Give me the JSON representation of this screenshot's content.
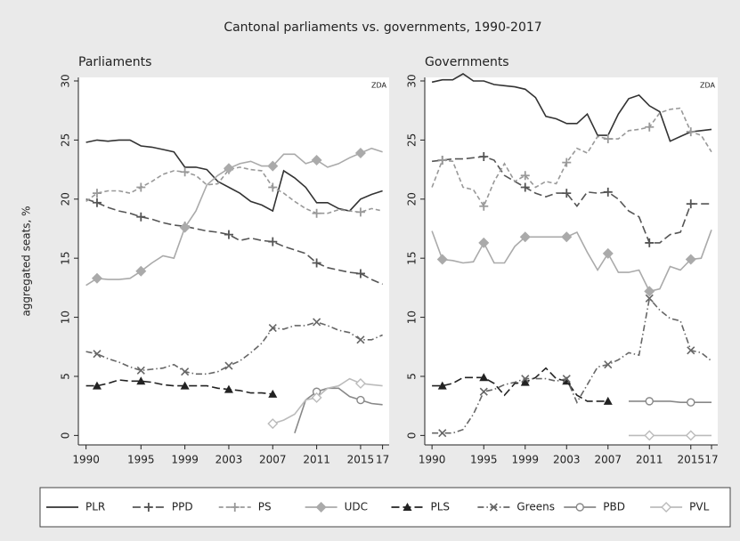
{
  "title": "Cantonal parliaments vs. governments, 1990-2017",
  "chart_data": [
    {
      "type": "line",
      "title": "Parliaments",
      "ylabel": "aggregated seats, %",
      "annotation": "ZDA",
      "x": [
        1990,
        1991,
        1992,
        1993,
        1994,
        1995,
        1996,
        1997,
        1998,
        1999,
        2000,
        2001,
        2002,
        2003,
        2004,
        2005,
        2006,
        2007,
        2008,
        2009,
        2010,
        2011,
        2012,
        2013,
        2014,
        2015,
        2016,
        2017
      ],
      "xlim": [
        1989.3,
        2017.6
      ],
      "xticks": [
        1990,
        1995,
        1999,
        2003,
        2007,
        2011,
        2015,
        {
          "value": 2017,
          "label": "17"
        }
      ],
      "ylim": [
        -0.8,
        30.3
      ],
      "yticks": [
        0,
        5,
        10,
        15,
        20,
        25,
        30
      ],
      "series": [
        {
          "name": "PLR",
          "color": "#333333",
          "dash": "solid",
          "marker": "none",
          "values": [
            24.8,
            25,
            24.9,
            25,
            25,
            24.5,
            24.4,
            24.2,
            24,
            22.7,
            22.7,
            22.5,
            21.5,
            21,
            20.5,
            19.8,
            19.5,
            19,
            22.4,
            21.8,
            21,
            19.7,
            19.7,
            19.2,
            19,
            20,
            20.4,
            20.7
          ]
        },
        {
          "name": "PPD",
          "color": "#555555",
          "dash": "longdash",
          "marker": "plus",
          "values": [
            20,
            19.7,
            19.3,
            19,
            18.8,
            18.5,
            18.3,
            18,
            17.8,
            17.7,
            17.5,
            17.3,
            17.2,
            17,
            16.5,
            16.7,
            16.5,
            16.4,
            16,
            15.7,
            15.4,
            14.6,
            14.2,
            14,
            13.8,
            13.7,
            13.2,
            12.8
          ]
        },
        {
          "name": "PS",
          "color": "#999999",
          "dash": "dash",
          "marker": "plus",
          "values": [
            19.8,
            20.5,
            20.7,
            20.7,
            20.5,
            21,
            21.5,
            22.1,
            22.4,
            22.3,
            22,
            21.2,
            21.3,
            22.5,
            22.7,
            22.5,
            22.4,
            21,
            20.5,
            19.8,
            19.2,
            18.8,
            18.8,
            19.1,
            19,
            18.9,
            19.2,
            19
          ]
        },
        {
          "name": "UDC",
          "color": "#aaaaaa",
          "dash": "solid",
          "marker": "diamond",
          "values": [
            12.7,
            13.3,
            13.2,
            13.2,
            13.3,
            13.9,
            14.6,
            15.2,
            15,
            17.6,
            19,
            21.2,
            22,
            22.6,
            23,
            23.2,
            22.8,
            22.8,
            23.8,
            23.8,
            23,
            23.3,
            22.7,
            23,
            23.5,
            23.9,
            24.3,
            24
          ]
        },
        {
          "name": "PLS",
          "color": "#222222",
          "dash": "longdash",
          "marker": "triangle",
          "values": [
            4.2,
            4.2,
            4.4,
            4.7,
            4.6,
            4.6,
            4.5,
            4.3,
            4.2,
            4.2,
            4.2,
            4.2,
            4,
            3.9,
            3.8,
            3.6,
            3.6,
            3.5,
            null,
            null,
            null,
            null,
            null,
            null,
            null,
            null,
            null,
            null
          ]
        },
        {
          "name": "Greens",
          "color": "#666666",
          "dash": "dashdot",
          "marker": "x",
          "values": [
            7.1,
            6.9,
            6.5,
            6.2,
            5.8,
            5.5,
            5.6,
            5.7,
            6,
            5.4,
            5.2,
            5.2,
            5.4,
            5.9,
            6.3,
            7,
            7.8,
            9.1,
            9,
            9.3,
            9.3,
            9.6,
            9.3,
            8.9,
            8.7,
            8.1,
            8.1,
            8.5
          ]
        },
        {
          "name": "PBD",
          "color": "#888888",
          "dash": "solid",
          "marker": "circle",
          "values": [
            null,
            null,
            null,
            null,
            null,
            null,
            null,
            null,
            null,
            null,
            null,
            null,
            null,
            null,
            null,
            null,
            null,
            null,
            null,
            0.2,
            3,
            3.7,
            4,
            4,
            3.3,
            3,
            2.7,
            2.6
          ]
        },
        {
          "name": "PVL",
          "color": "#bbbbbb",
          "dash": "solid",
          "marker": "diamond-open",
          "values": [
            null,
            null,
            null,
            null,
            null,
            null,
            null,
            null,
            null,
            null,
            null,
            null,
            null,
            null,
            null,
            null,
            null,
            1,
            1.3,
            1.8,
            3,
            3.2,
            4,
            4.2,
            4.8,
            4.4,
            4.3,
            4.2
          ]
        }
      ]
    },
    {
      "type": "line",
      "title": "Governments",
      "annotation": "ZDA",
      "x": [
        1990,
        1991,
        1992,
        1993,
        1994,
        1995,
        1996,
        1997,
        1998,
        1999,
        2000,
        2001,
        2002,
        2003,
        2004,
        2005,
        2006,
        2007,
        2008,
        2009,
        2010,
        2011,
        2012,
        2013,
        2014,
        2015,
        2016,
        2017
      ],
      "xlim": [
        1989.3,
        2017.6
      ],
      "xticks": [
        1990,
        1995,
        1999,
        2003,
        2007,
        2011,
        2015,
        {
          "value": 2017,
          "label": "17"
        }
      ],
      "ylim": [
        -0.8,
        30.3
      ],
      "yticks": [
        0,
        5,
        10,
        15,
        20,
        25,
        30
      ],
      "series": [
        {
          "name": "PLR",
          "color": "#333333",
          "dash": "solid",
          "marker": "none",
          "values": [
            29.9,
            30.1,
            30.1,
            30.6,
            30,
            30,
            29.7,
            29.6,
            29.5,
            29.3,
            28.6,
            27,
            26.8,
            26.4,
            26.4,
            27.2,
            25.4,
            25.4,
            27.2,
            28.5,
            28.8,
            27.9,
            27.4,
            24.9,
            25.3,
            25.7,
            25.8,
            25.9
          ]
        },
        {
          "name": "PPD",
          "color": "#555555",
          "dash": "longdash",
          "marker": "plus",
          "values": [
            23.2,
            23.3,
            23.4,
            23.4,
            23.5,
            23.6,
            23.3,
            22,
            21.5,
            21,
            20.5,
            20.2,
            20.5,
            20.5,
            19.4,
            20.6,
            20.5,
            20.6,
            20,
            19,
            18.5,
            16.3,
            16.3,
            17,
            17.2,
            19.6,
            19.6,
            19.6
          ]
        },
        {
          "name": "PS",
          "color": "#999999",
          "dash": "dash",
          "marker": "plus",
          "values": [
            21,
            23.3,
            23.2,
            21,
            20.8,
            19.4,
            21.5,
            23,
            21.5,
            22,
            21,
            21.5,
            21.3,
            23.1,
            24.3,
            23.9,
            25.3,
            25.1,
            25.1,
            25.8,
            25.9,
            26.1,
            27.3,
            27.6,
            27.7,
            25.7,
            25.4,
            24
          ]
        },
        {
          "name": "UDC",
          "color": "#aaaaaa",
          "dash": "solid",
          "marker": "diamond",
          "values": [
            17.3,
            14.9,
            14.8,
            14.6,
            14.7,
            16.3,
            14.6,
            14.6,
            16,
            16.8,
            16.8,
            16.8,
            16.8,
            16.8,
            17.2,
            15.5,
            14,
            15.4,
            13.8,
            13.8,
            14,
            12.2,
            12.4,
            14.3,
            14,
            14.9,
            15,
            17.4
          ]
        },
        {
          "name": "PLS",
          "color": "#222222",
          "dash": "longdash",
          "marker": "triangle",
          "values": [
            4.2,
            4.2,
            4.4,
            4.9,
            4.9,
            4.9,
            4.4,
            3.4,
            4.4,
            4.5,
            4.9,
            5.7,
            4.8,
            4.6,
            3.4,
            2.9,
            2.9,
            2.9,
            null,
            null,
            null,
            null,
            null,
            null,
            null,
            null,
            null,
            null
          ]
        },
        {
          "name": "Greens",
          "color": "#666666",
          "dash": "dashdot",
          "marker": "x",
          "values": [
            0.2,
            0.2,
            0.2,
            0.5,
            1.8,
            3.7,
            3.9,
            4.3,
            4.5,
            4.8,
            4.8,
            4.8,
            4.6,
            4.8,
            2.8,
            4.3,
            5.8,
            6,
            6.4,
            7,
            6.8,
            11.6,
            10.6,
            9.9,
            9.7,
            7.2,
            7,
            6.3
          ]
        },
        {
          "name": "PBD",
          "color": "#888888",
          "dash": "solid",
          "marker": "circle",
          "values": [
            null,
            null,
            null,
            null,
            null,
            null,
            null,
            null,
            null,
            null,
            null,
            null,
            null,
            null,
            null,
            null,
            null,
            null,
            null,
            2.9,
            2.9,
            2.9,
            2.9,
            2.9,
            2.8,
            2.8,
            2.8,
            2.8
          ]
        },
        {
          "name": "PVL",
          "color": "#bbbbbb",
          "dash": "solid",
          "marker": "diamond-open",
          "values": [
            null,
            null,
            null,
            null,
            null,
            null,
            null,
            null,
            null,
            null,
            null,
            null,
            null,
            null,
            null,
            null,
            null,
            null,
            null,
            0,
            0,
            0,
            0,
            0,
            0,
            0,
            0,
            0
          ]
        }
      ]
    }
  ]
}
